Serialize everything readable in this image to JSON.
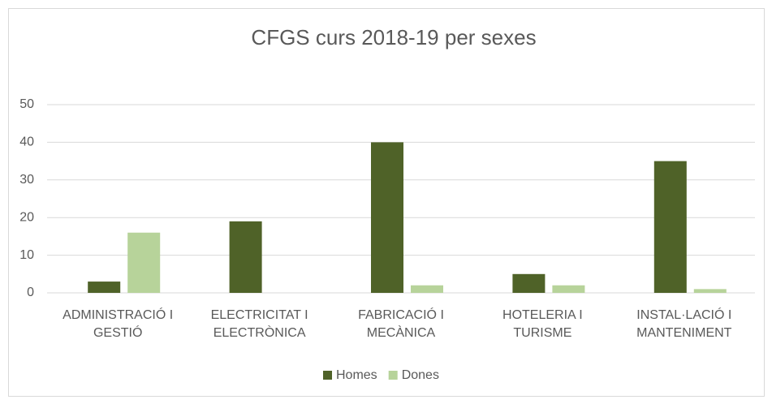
{
  "chart_data": {
    "type": "bar",
    "title": "CFGS curs 2018-19 per sexes",
    "categories": [
      "ADMINISTRACIÓ I GESTIÓ",
      "ELECTRICITAT I ELECTRÒNICA",
      "FABRICACIÓ I MECÀNICA",
      "HOTELERIA I TURISME",
      "INSTAL·LACIÓ I MANTENIMENT"
    ],
    "series": [
      {
        "name": "Homes",
        "color": "#4f6228",
        "values": [
          3,
          19,
          40,
          5,
          35
        ]
      },
      {
        "name": "Dones",
        "color": "#b7d39a",
        "values": [
          16,
          0,
          2,
          2,
          1
        ]
      }
    ],
    "ylim": [
      0,
      50
    ],
    "yticks": [
      0,
      10,
      20,
      30,
      40,
      50
    ],
    "grid": true,
    "legend": "bottom"
  }
}
